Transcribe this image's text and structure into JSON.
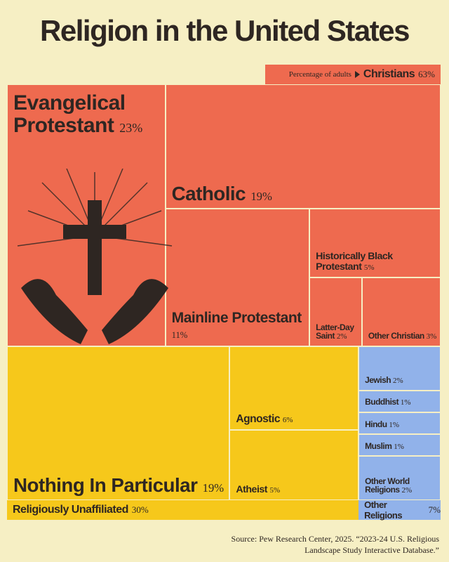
{
  "chart_data": {
    "type": "treemap",
    "title": "Religion in the United States",
    "subtitle": "Percentage of adults",
    "groups": [
      {
        "name": "Christians",
        "value": 63,
        "value_label": "63%",
        "color": "#ee6a4f",
        "categories": [
          "Evangelical Protestant",
          "Catholic",
          "Mainline Protestant",
          "Historically Black Protestant",
          "Latter-Day Saint",
          "Other Christian"
        ],
        "values": [
          23,
          19,
          11,
          5,
          2,
          3
        ],
        "value_labels": [
          "23%",
          "19%",
          "11%",
          "5%",
          "2%",
          "3%"
        ]
      },
      {
        "name": "Religiously Unaffiliated",
        "value": 30,
        "value_label": "30%",
        "color": "#f6c81b",
        "categories": [
          "Nothing In Particular",
          "Agnostic",
          "Atheist"
        ],
        "values": [
          19,
          6,
          5
        ],
        "value_labels": [
          "19%",
          "6%",
          "5%"
        ]
      },
      {
        "name": "Other Religions",
        "value": 7,
        "value_label": "7%",
        "color": "#91b2ea",
        "categories": [
          "Jewish",
          "Buddhist",
          "Hindu",
          "Muslim",
          "Other World Religions"
        ],
        "values": [
          2,
          1,
          1,
          1,
          2
        ],
        "value_labels": [
          "2%",
          "1%",
          "1%",
          "1%",
          "2%"
        ]
      }
    ],
    "source": "Source: Pew Research Center, 2025. “2023-24 U.S. Religious Landscape Study Interactive Database.”"
  }
}
